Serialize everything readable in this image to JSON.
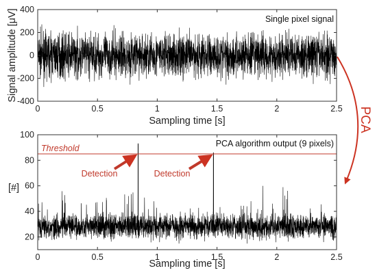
{
  "chart_data": [
    {
      "type": "line",
      "inset_label": "Single pixel signal",
      "xlabel": "Sampling time [s]",
      "ylabel": "Signal amplitude [μV]",
      "xlim": [
        0,
        2.5
      ],
      "ylim": [
        -400,
        400
      ],
      "xticks": [
        "0",
        "0.5",
        "1",
        "1.5",
        "2",
        "2.5"
      ],
      "yticks": [
        "-400",
        "-200",
        "0",
        "200",
        "400"
      ],
      "grid": false,
      "signal": {
        "mean": 0,
        "typical_range": [
          -220,
          220
        ],
        "peak_range": [
          -280,
          290
        ]
      }
    },
    {
      "type": "line",
      "inset_label": "PCA algorithm output (9 pixels)",
      "xlabel": "Sampling time [s]",
      "ylabel": "[#]",
      "xlim": [
        0,
        2.5
      ],
      "ylim": [
        10,
        100
      ],
      "xticks": [
        "0",
        "0.5",
        "1",
        "1.5",
        "2",
        "2.5"
      ],
      "yticks": [
        "20",
        "40",
        "60",
        "80",
        "100"
      ],
      "grid": false,
      "threshold": {
        "value": 85,
        "label": "Threshold"
      },
      "signal": {
        "baseline": 28,
        "typical_range": [
          16,
          55
        ]
      },
      "detections": [
        {
          "x": 0.84,
          "y": 93,
          "label": "Detection"
        },
        {
          "x": 1.47,
          "y": 86,
          "label": "Detection"
        }
      ]
    }
  ],
  "annotation": {
    "label": "PCA",
    "color": "#cc3322"
  },
  "colors": {
    "signal": "#000000",
    "threshold": "#c0392b",
    "detection": "#c0392b"
  }
}
